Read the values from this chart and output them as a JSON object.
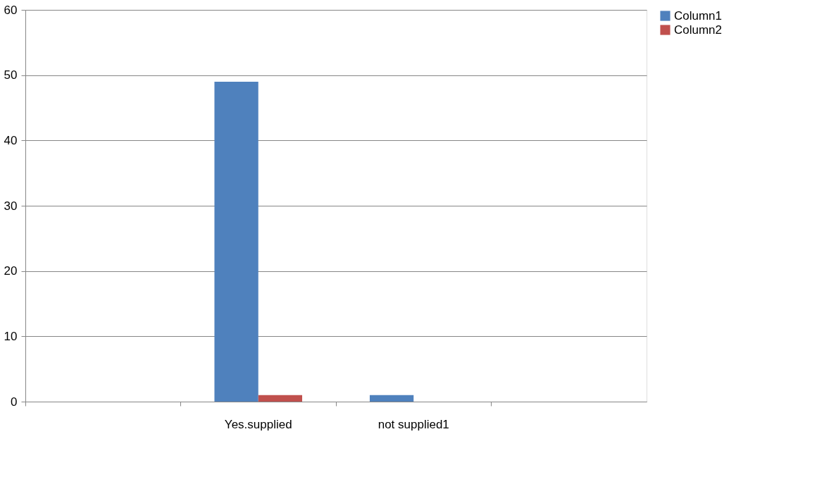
{
  "chart_data": {
    "type": "bar",
    "categories": [
      null,
      "Yes.supplied",
      "not supplied1",
      null
    ],
    "series": [
      {
        "name": "Column1",
        "color": "#4f81bd",
        "values": [
          null,
          49,
          1,
          null
        ]
      },
      {
        "name": "Column2",
        "color": "#c0504d",
        "values": [
          null,
          1,
          null,
          null
        ]
      }
    ],
    "ylim": [
      0,
      60
    ],
    "yticks": [
      0,
      10,
      20,
      30,
      40,
      50,
      60
    ],
    "grid": "y",
    "legend": "right"
  }
}
